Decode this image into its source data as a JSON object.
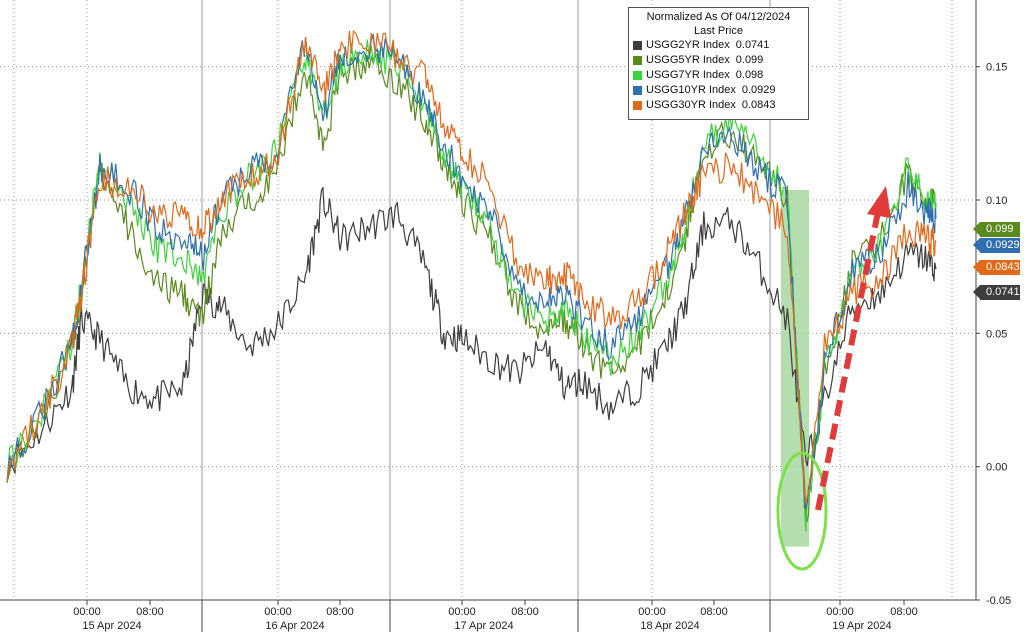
{
  "chart_data": {
    "type": "line",
    "title": "Normalized As Of 04/12/2024",
    "subtitle": "Last Price",
    "y_ticks": [
      "0.15",
      "0.10",
      "0.05",
      "0.00",
      "-0.05"
    ],
    "y_tick_values": [
      0.15,
      0.1,
      0.05,
      0.0,
      -0.05
    ],
    "ylim": [
      -0.05,
      0.175
    ],
    "time_ticks": [
      "00:00",
      "08:00",
      "00:00",
      "08:00",
      "00:00",
      "08:00",
      "00:00",
      "08:00",
      "00:00",
      "08:00"
    ],
    "day_labels": [
      "15 Apr 2024",
      "16 Apr 2024",
      "17 Apr 2024",
      "18 Apr 2024",
      "19 Apr 2024"
    ],
    "grid": true,
    "legend_position": "top-right",
    "x": [
      0,
      4,
      7,
      8,
      10,
      13,
      16,
      19,
      21,
      23,
      26,
      29,
      32,
      34,
      36,
      39,
      42,
      45,
      47,
      49,
      52,
      55,
      58,
      60,
      62,
      65,
      68,
      71,
      73,
      75,
      78,
      81,
      84,
      86,
      88,
      91,
      94,
      97,
      99,
      100
    ],
    "series": [
      {
        "name": "USGG2YR Index",
        "last": "0.0741",
        "color": "#3d3d3d",
        "tag_text": "#ffffff",
        "values": [
          0.0,
          0.015,
          0.03,
          0.055,
          0.048,
          0.03,
          0.025,
          0.03,
          0.065,
          0.06,
          0.045,
          0.052,
          0.07,
          0.1,
          0.085,
          0.09,
          0.095,
          0.075,
          0.05,
          0.048,
          0.04,
          0.035,
          0.045,
          0.03,
          0.032,
          0.022,
          0.03,
          0.045,
          0.06,
          0.09,
          0.092,
          0.075,
          0.055,
          0.0,
          0.025,
          0.06,
          0.065,
          0.08,
          0.078,
          0.074
        ]
      },
      {
        "name": "USGG5YR Index",
        "last": "0.099",
        "color": "#5a8a1e",
        "tag_text": "#ffffff",
        "values": [
          0.0,
          0.02,
          0.045,
          0.065,
          0.11,
          0.09,
          0.068,
          0.065,
          0.055,
          0.085,
          0.1,
          0.11,
          0.15,
          0.12,
          0.148,
          0.152,
          0.145,
          0.13,
          0.115,
          0.1,
          0.085,
          0.06,
          0.05,
          0.055,
          0.045,
          0.035,
          0.045,
          0.065,
          0.085,
          0.12,
          0.125,
          0.115,
          0.1,
          -0.02,
          0.035,
          0.075,
          0.085,
          0.11,
          0.1,
          0.099
        ]
      },
      {
        "name": "USGG7YR Index",
        "last": "0.098",
        "color": "#3cd43c",
        "tag_text": "#ffffff",
        "values": [
          0.0,
          0.022,
          0.047,
          0.068,
          0.115,
          0.1,
          0.082,
          0.078,
          0.07,
          0.095,
          0.108,
          0.118,
          0.155,
          0.13,
          0.152,
          0.156,
          0.15,
          0.135,
          0.118,
          0.105,
          0.09,
          0.062,
          0.055,
          0.06,
          0.05,
          0.04,
          0.05,
          0.07,
          0.09,
          0.122,
          0.128,
          0.118,
          0.102,
          -0.02,
          0.035,
          0.073,
          0.083,
          0.112,
          0.1,
          0.098
        ]
      },
      {
        "name": "USGG10YR Index",
        "last": "0.0929",
        "color": "#2f6fb0",
        "tag_text": "#ffffff",
        "values": [
          0.0,
          0.022,
          0.046,
          0.067,
          0.112,
          0.105,
          0.09,
          0.086,
          0.078,
          0.1,
          0.11,
          0.118,
          0.158,
          0.132,
          0.155,
          0.158,
          0.152,
          0.138,
          0.12,
          0.108,
          0.095,
          0.068,
          0.062,
          0.065,
          0.055,
          0.045,
          0.055,
          0.075,
          0.093,
          0.12,
          0.125,
          0.112,
          0.1,
          -0.02,
          0.038,
          0.072,
          0.08,
          0.105,
          0.095,
          0.093
        ]
      },
      {
        "name": "USGG30YR Index",
        "last": "0.0843",
        "color": "#e06a1a",
        "tag_text": "#ffffff",
        "values": [
          0.0,
          0.022,
          0.045,
          0.065,
          0.108,
          0.105,
          0.095,
          0.095,
          0.088,
          0.1,
          0.108,
          0.115,
          0.16,
          0.14,
          0.158,
          0.16,
          0.155,
          0.145,
          0.128,
          0.118,
          0.105,
          0.075,
          0.07,
          0.072,
          0.063,
          0.055,
          0.062,
          0.08,
          0.095,
          0.11,
          0.113,
          0.1,
          0.09,
          -0.015,
          0.045,
          0.065,
          0.07,
          0.09,
          0.085,
          0.084
        ]
      }
    ],
    "annotations": {
      "highlight_band_color": "#a8d8a0",
      "circle_color": "#7be04a",
      "arrow_color": "#e03a3a"
    }
  }
}
